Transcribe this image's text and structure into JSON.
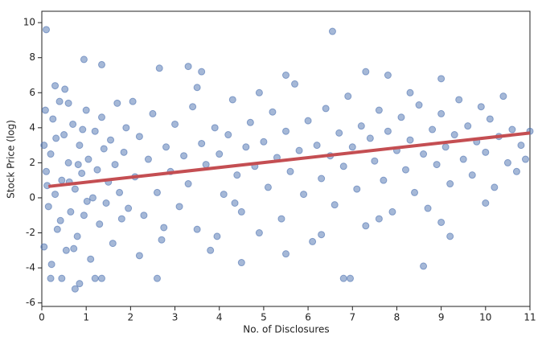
{
  "chart_data": {
    "type": "scatter",
    "x_label": "No. of Disclosures",
    "y_label": "Stock Price (log)",
    "xlim": [
      0,
      11
    ],
    "ylim": [
      -6.2,
      10.65
    ],
    "xticks": [
      0,
      1,
      2,
      3,
      4,
      5,
      6,
      7,
      8,
      9,
      10,
      11
    ],
    "yticks": [
      -6,
      -4,
      -2,
      0,
      2,
      4,
      6,
      8,
      10
    ],
    "points": {
      "color": "#4c72b0",
      "x": [
        0.1,
        6.55,
        0.95,
        1.35,
        2.65,
        3.3,
        3.6,
        7.3,
        7.8,
        9,
        5.5,
        0.75,
        0.85,
        6.8,
        6.95,
        9.2,
        9,
        8.6,
        4.5,
        5.5,
        10,
        2.6,
        1.2,
        1.35,
        0.2,
        0.45,
        0.05,
        0.1,
        0.15,
        0.2,
        0.25,
        0.3,
        0.35,
        0.4,
        0.45,
        0.5,
        0.55,
        0.6,
        0.65,
        0.7,
        0.75,
        0.8,
        0.85,
        0.9,
        0.95,
        1,
        1.05,
        1.1,
        1.15,
        1.2,
        1.25,
        1.3,
        1.35,
        1.4,
        1.45,
        1.5,
        1.55,
        1.6,
        1.65,
        1.7,
        1.75,
        1.8,
        1.85,
        1.9,
        1.95,
        0.05,
        0.12,
        0.22,
        0.32,
        0.42,
        0.52,
        0.62,
        0.72,
        0.82,
        0.92,
        1.02,
        0.3,
        0.6,
        0.08,
        2.1,
        2.2,
        2.3,
        2.4,
        2.5,
        2.6,
        2.7,
        2.8,
        2.9,
        3,
        3.1,
        3.2,
        3.3,
        3.4,
        3.5,
        3.6,
        3.7,
        3.8,
        3.9,
        4,
        4.1,
        4.2,
        4.3,
        4.4,
        4.5,
        4.6,
        4.7,
        4.8,
        4.9,
        5,
        5.1,
        5.2,
        5.3,
        5.4,
        5.5,
        5.6,
        5.7,
        5.8,
        5.9,
        6,
        6.1,
        6.2,
        6.3,
        6.4,
        6.5,
        6.6,
        6.7,
        6.8,
        6.9,
        7,
        7.1,
        7.2,
        7.3,
        7.4,
        7.5,
        7.6,
        7.7,
        7.8,
        7.9,
        8,
        8.1,
        8.2,
        8.3,
        8.4,
        8.5,
        8.6,
        8.7,
        8.8,
        8.9,
        9,
        9.1,
        9.2,
        9.3,
        9.4,
        9.5,
        9.6,
        9.7,
        9.8,
        9.9,
        10,
        10.1,
        10.2,
        10.3,
        10.4,
        10.5,
        10.6,
        10.7,
        10.8,
        10.9,
        11,
        2.2,
        3.5,
        4.9,
        6.3,
        7.6,
        8.3,
        2.05,
        2.75,
        3.95,
        4.35
      ],
      "values": [
        9.6,
        9.5,
        7.9,
        7.6,
        7.4,
        7.5,
        7.2,
        7.2,
        7.0,
        6.8,
        7.0,
        -5.2,
        -4.9,
        -4.6,
        -4.6,
        -2.2,
        -1.4,
        -3.9,
        -3.7,
        -3.2,
        -0.3,
        -4.6,
        -4.6,
        -4.6,
        -4.6,
        -4.6,
        3,
        1.5,
        -0.5,
        2.5,
        4.5,
        0.2,
        -1.8,
        5.5,
        1,
        3.6,
        -3,
        2,
        -0.8,
        4.2,
        0.5,
        -2.2,
        3,
        1.4,
        -1,
        5,
        2.2,
        -3.5,
        0,
        3.8,
        1.6,
        -1.5,
        4.6,
        2.8,
        -0.3,
        0.9,
        3.3,
        -2.6,
        1.9,
        5.4,
        0.3,
        -1.2,
        2.6,
        4,
        -0.6,
        -2.8,
        0.7,
        -3.8,
        3.4,
        -1.3,
        6.2,
        0.9,
        -2.9,
        1.9,
        3.9,
        -0.2,
        6.4,
        5.4,
        5,
        1.2,
        3.5,
        -1,
        2.2,
        4.8,
        0.3,
        -2.4,
        2.9,
        1.5,
        4.2,
        -0.5,
        2.4,
        0.8,
        5.2,
        -1.8,
        3.1,
        1.9,
        -3,
        4,
        2.5,
        0.2,
        3.6,
        5.6,
        1.3,
        -0.8,
        2.9,
        4.3,
        1.8,
        -2,
        3.2,
        0.6,
        4.9,
        2.3,
        -1.2,
        3.8,
        1.5,
        6.5,
        2.7,
        0.2,
        4.4,
        -2.5,
        3,
        1.1,
        5.1,
        2.4,
        -0.4,
        3.7,
        1.8,
        5.8,
        2.9,
        0.5,
        4.1,
        -1.6,
        3.4,
        2.1,
        5,
        1,
        3.8,
        -0.8,
        2.7,
        4.6,
        1.6,
        3.3,
        0.3,
        5.3,
        2.5,
        -0.6,
        3.9,
        1.9,
        4.8,
        2.9,
        0.8,
        3.6,
        5.6,
        2.2,
        4.1,
        1.3,
        3.2,
        5.2,
        2.6,
        4.5,
        0.6,
        3.5,
        5.8,
        2,
        3.9,
        1.5,
        3,
        2.2,
        3.8,
        -3.3,
        6.3,
        6,
        -2.1,
        -1.2,
        6,
        5.5,
        -1.7,
        -2.2,
        -0.3
      ]
    },
    "trend_line": {
      "color": "#c44e52",
      "x": [
        0.15,
        11
      ],
      "values": [
        0.65,
        3.7
      ]
    }
  }
}
